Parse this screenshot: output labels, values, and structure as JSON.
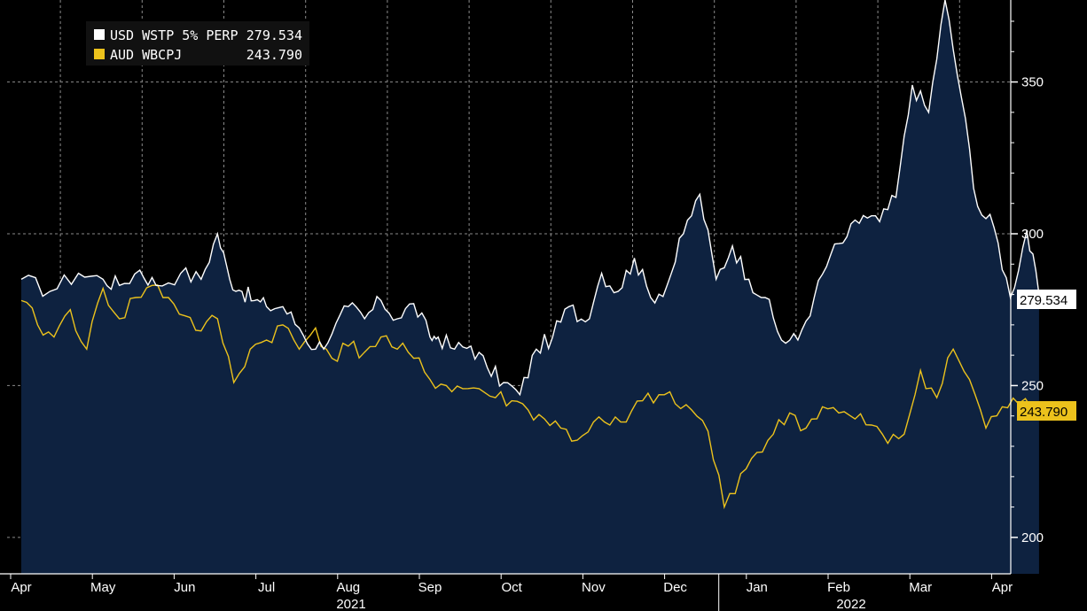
{
  "chart_data": {
    "type": "line",
    "x_ticks": [
      "Apr",
      "May",
      "Jun",
      "Jul",
      "Aug",
      "Sep",
      "Oct",
      "Nov",
      "Dec",
      "Jan",
      "Feb",
      "Mar",
      "Apr"
    ],
    "years": [
      "2021",
      "2022"
    ],
    "y_ticks": [
      "200",
      "250",
      "300",
      "350"
    ],
    "ylim": [
      188,
      377
    ],
    "grid": true,
    "legend_position": "top-left",
    "series": [
      {
        "name": "USD WSTP 5% PERP",
        "legend_value": "279.534",
        "last_label": "279.534",
        "color": "#ffffff",
        "fill": "#0e2240",
        "x": [
          0.0,
          0.35,
          0.7,
          1.0,
          1.2,
          1.45,
          1.65,
          1.95,
          2.2,
          2.4,
          2.55,
          2.7,
          2.85,
          3.0,
          3.2,
          3.4,
          3.6,
          3.8,
          4.0,
          4.2,
          4.4,
          4.6,
          4.8,
          5.0,
          5.1,
          5.3,
          5.5,
          5.7,
          5.9,
          6.1,
          6.3,
          6.5,
          6.7,
          6.9,
          7.1,
          7.3,
          7.5,
          7.7,
          7.9,
          8.1,
          8.3,
          8.5,
          8.7,
          8.9,
          9.1,
          9.3,
          9.5,
          9.7,
          9.9,
          10.1,
          10.3,
          10.5,
          10.7,
          10.9,
          11.1,
          11.3,
          11.5,
          11.7,
          11.9,
          12.1,
          12.3,
          12.45
        ],
        "values": [
          285,
          281,
          287,
          285,
          283,
          288,
          283,
          287,
          285,
          300,
          285,
          281,
          278,
          276,
          276,
          269,
          262,
          267,
          276,
          272,
          278,
          272,
          277,
          266,
          266,
          262,
          263,
          256,
          251,
          247,
          262,
          266,
          276,
          271,
          287,
          281,
          292,
          279,
          283,
          300,
          313,
          285,
          296,
          285,
          279,
          265,
          265,
          279,
          293,
          299,
          306,
          304,
          312,
          349,
          340,
          377,
          345,
          309,
          302,
          279,
          301,
          280
        ],
        "points_per_segment": 3
      },
      {
        "name": "AUD WBCPJ",
        "legend_value": "243.790",
        "last_label": "243.790",
        "color": "#ecc21c",
        "x": [
          0.0,
          0.2,
          0.4,
          0.6,
          0.8,
          1.0,
          1.2,
          1.4,
          1.6,
          1.8,
          2.0,
          2.2,
          2.4,
          2.6,
          2.8,
          3.0,
          3.2,
          3.4,
          3.6,
          3.8,
          4.0,
          4.2,
          4.4,
          4.6,
          4.8,
          5.0,
          5.2,
          5.4,
          5.6,
          5.8,
          6.0,
          6.2,
          6.4,
          6.6,
          6.8,
          7.0,
          7.2,
          7.4,
          7.6,
          7.8,
          8.0,
          8.2,
          8.4,
          8.6,
          8.8,
          9.0,
          9.2,
          9.4,
          9.6,
          9.8,
          10.0,
          10.2,
          10.4,
          10.6,
          10.8,
          11.0,
          11.2,
          11.4,
          11.6,
          11.8,
          12.0,
          12.2,
          12.45
        ],
        "values": [
          278,
          270,
          266,
          275,
          262,
          282,
          272,
          279,
          283,
          279,
          273,
          268,
          272,
          251,
          262,
          265,
          270,
          262,
          269,
          259,
          263,
          261,
          266,
          262,
          259,
          252,
          250,
          249,
          249,
          246,
          245,
          242,
          239,
          236,
          232,
          238,
          237,
          238,
          245,
          247,
          244,
          242,
          235,
          210,
          221,
          228,
          234,
          241,
          236,
          243,
          241,
          239,
          237,
          231,
          234,
          255,
          246,
          262,
          252,
          236,
          243,
          244,
          243.79
        ],
        "points_per_segment": 2
      }
    ]
  }
}
